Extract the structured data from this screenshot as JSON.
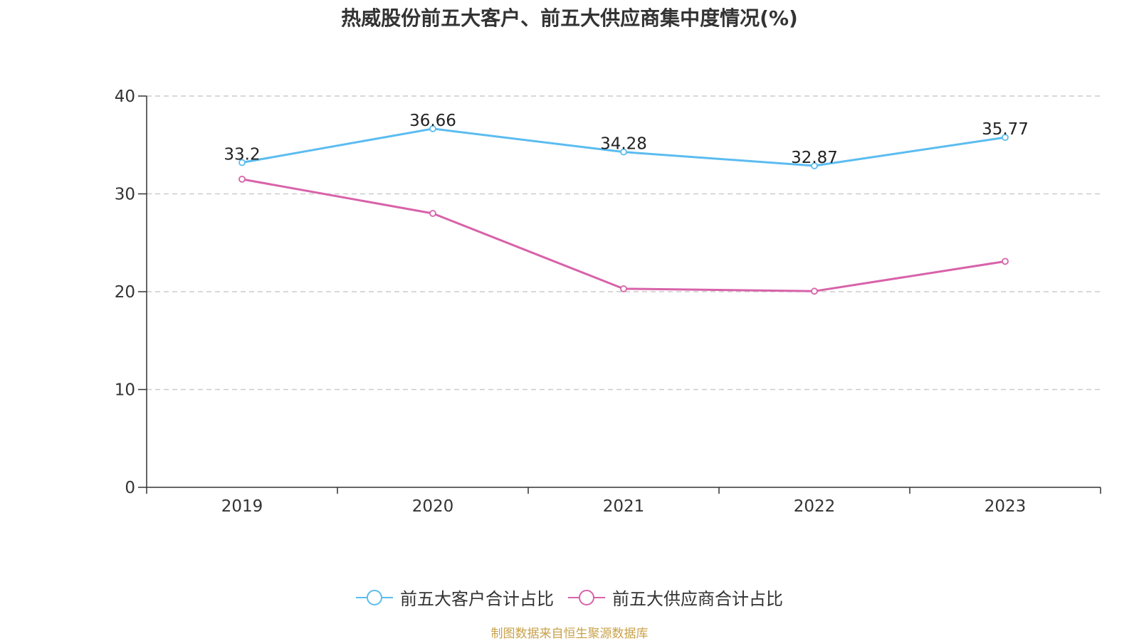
{
  "title": "热威股份前五大客户、前五大供应商集中度情况(%)",
  "source": "制图数据来自恒生聚源数据库",
  "colors": {
    "series1": "#5bbcf0",
    "series2": "#d862a9",
    "axis": "#333333",
    "grid": "#cccccc",
    "source": "#c9a24a",
    "text": "#333333"
  },
  "chart_data": {
    "type": "line",
    "title": "热威股份前五大客户、前五大供应商集中度情况(%)",
    "categories": [
      "2019",
      "2020",
      "2021",
      "2022",
      "2023"
    ],
    "series": [
      {
        "name": "前五大客户合计占比",
        "values": [
          33.2,
          36.66,
          34.28,
          32.87,
          35.77
        ],
        "labels": [
          "33.2",
          "36.66",
          "34.28",
          "32.87",
          "35.77"
        ],
        "show_labels": true
      },
      {
        "name": "前五大供应商合计占比",
        "values": [
          31.5,
          28.0,
          20.3,
          20.05,
          23.1
        ],
        "show_labels": false
      }
    ],
    "ylim": [
      0,
      40
    ],
    "yticks": [
      "0",
      "10",
      "20",
      "30",
      "40"
    ],
    "grid": true,
    "legend_position": "bottom-center",
    "xlabel": "",
    "ylabel": ""
  }
}
